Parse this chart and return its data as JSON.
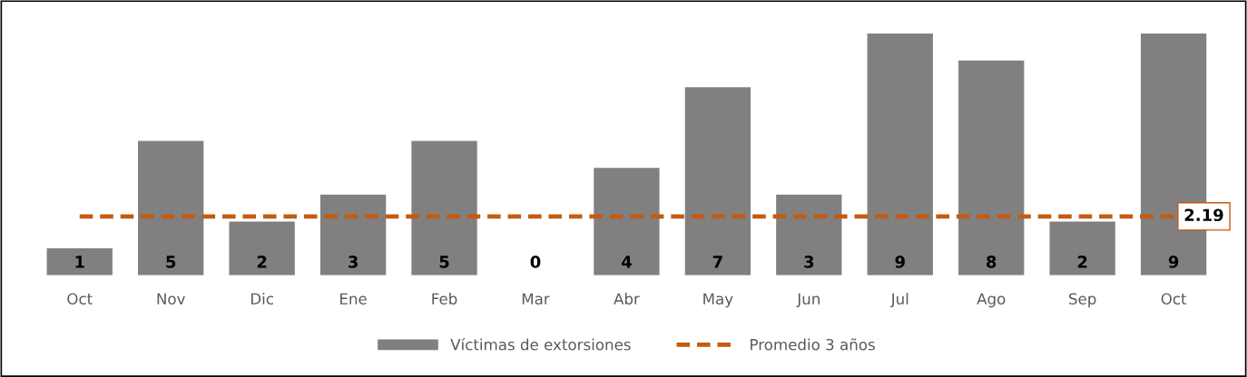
{
  "chart_data": {
    "type": "bar",
    "categories": [
      "Oct",
      "Nov",
      "Dic",
      "Ene",
      "Feb",
      "Mar",
      "Abr",
      "May",
      "Jun",
      "Jul",
      "Ago",
      "Sep",
      "Oct"
    ],
    "series": [
      {
        "name": "Víctimas de extorsiones",
        "color": "#808080",
        "values": [
          1,
          5,
          2,
          3,
          5,
          0,
          4,
          7,
          3,
          9,
          8,
          2,
          9
        ],
        "data_labels": true
      },
      {
        "name": "Promedio 3 años",
        "type": "line",
        "color": "#c55a11",
        "line_style": "dashed",
        "values": [
          2.19,
          2.19,
          2.19,
          2.19,
          2.19,
          2.19,
          2.19,
          2.19,
          2.19,
          2.19,
          2.19,
          2.19,
          2.19
        ],
        "value_labels": [
          null,
          null,
          null,
          null,
          null,
          null,
          null,
          null,
          null,
          null,
          null,
          null,
          "2.19"
        ]
      }
    ],
    "legend": "bottom",
    "grid": false
  }
}
